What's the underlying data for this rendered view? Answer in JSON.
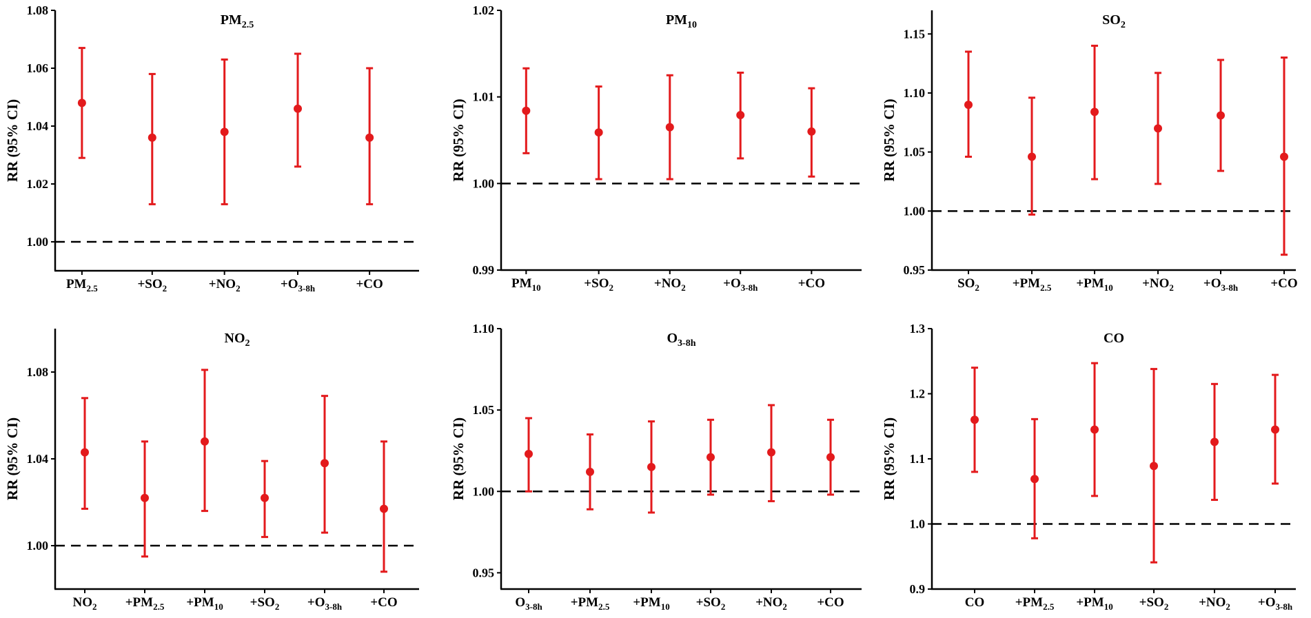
{
  "figure": {
    "color_point": "#e31a1c",
    "color_axis": "#000000",
    "color_reference": "#000000"
  },
  "chart_data": [
    {
      "type": "errorbar",
      "title": {
        "base": "PM",
        "sub": "2.5"
      },
      "ylabel": "RR (95% CI)",
      "ylim": [
        0.99,
        1.08
      ],
      "yticks": [
        "1.00",
        "1.02",
        "1.04",
        "1.06",
        "1.08"
      ],
      "reference": 1.0,
      "categories": [
        {
          "base": "PM",
          "sub": "2.5"
        },
        {
          "base": "+SO",
          "sub": "2"
        },
        {
          "base": "+NO",
          "sub": "2"
        },
        {
          "base": "+O",
          "sub": "3-8h"
        },
        {
          "base": "+CO",
          "sub": ""
        }
      ],
      "estimates": [
        1.048,
        1.036,
        1.038,
        1.046,
        1.036
      ],
      "lower": [
        1.029,
        1.013,
        1.013,
        1.026,
        1.013
      ],
      "upper": [
        1.067,
        1.058,
        1.063,
        1.065,
        1.06
      ]
    },
    {
      "type": "errorbar",
      "title": {
        "base": "PM",
        "sub": "10"
      },
      "ylabel": "RR (95% CI)",
      "ylim": [
        0.99,
        1.02
      ],
      "yticks": [
        "0.99",
        "1.00",
        "1.01",
        "1.02"
      ],
      "reference": 1.0,
      "categories": [
        {
          "base": "PM",
          "sub": "10"
        },
        {
          "base": "+SO",
          "sub": "2"
        },
        {
          "base": "+NO",
          "sub": "2"
        },
        {
          "base": "+O",
          "sub": "3-8h"
        },
        {
          "base": "+CO",
          "sub": ""
        }
      ],
      "estimates": [
        1.0084,
        1.0059,
        1.0065,
        1.0079,
        1.006
      ],
      "lower": [
        1.0035,
        1.0005,
        1.0005,
        1.0029,
        1.0008
      ],
      "upper": [
        1.0133,
        1.0112,
        1.0125,
        1.0128,
        1.011
      ]
    },
    {
      "type": "errorbar",
      "title": {
        "base": "SO",
        "sub": "2"
      },
      "ylabel": "RR (95% CI)",
      "ylim": [
        0.95,
        1.17
      ],
      "yticks": [
        "0.95",
        "1.00",
        "1.05",
        "1.10",
        "1.15"
      ],
      "reference": 1.0,
      "categories": [
        {
          "base": "SO",
          "sub": "2"
        },
        {
          "base": "+PM",
          "sub": "2.5"
        },
        {
          "base": "+PM",
          "sub": "10"
        },
        {
          "base": "+NO",
          "sub": "2"
        },
        {
          "base": "+O",
          "sub": "3-8h"
        },
        {
          "base": "+CO",
          "sub": ""
        }
      ],
      "estimates": [
        1.09,
        1.046,
        1.084,
        1.07,
        1.081,
        1.046
      ],
      "lower": [
        1.046,
        0.997,
        1.027,
        1.023,
        1.034,
        0.963
      ],
      "upper": [
        1.135,
        1.096,
        1.14,
        1.117,
        1.128,
        1.13
      ]
    },
    {
      "type": "errorbar",
      "title": {
        "base": "NO",
        "sub": "2"
      },
      "ylabel": "RR (95% CI)",
      "ylim": [
        0.98,
        1.1
      ],
      "yticks": [
        "1.00",
        "1.04",
        "1.08"
      ],
      "reference": 1.0,
      "categories": [
        {
          "base": "NO",
          "sub": "2"
        },
        {
          "base": "+PM",
          "sub": "2.5"
        },
        {
          "base": "+PM",
          "sub": "10"
        },
        {
          "base": "+SO",
          "sub": "2"
        },
        {
          "base": "+O",
          "sub": "3-8h"
        },
        {
          "base": "+CO",
          "sub": ""
        }
      ],
      "estimates": [
        1.043,
        1.022,
        1.048,
        1.022,
        1.038,
        1.017
      ],
      "lower": [
        1.017,
        0.995,
        1.016,
        1.004,
        1.006,
        0.988
      ],
      "upper": [
        1.068,
        1.048,
        1.081,
        1.039,
        1.069,
        1.048
      ]
    },
    {
      "type": "errorbar",
      "title": {
        "base": "O",
        "sub": "3-8h"
      },
      "ylabel": "RR (95% CI)",
      "ylim": [
        0.94,
        1.1
      ],
      "yticks": [
        "0.95",
        "1.00",
        "1.05",
        "1.10"
      ],
      "reference": 1.0,
      "categories": [
        {
          "base": "O",
          "sub": "3-8h"
        },
        {
          "base": "+PM",
          "sub": "2.5"
        },
        {
          "base": "+PM",
          "sub": "10"
        },
        {
          "base": "+SO",
          "sub": "2"
        },
        {
          "base": "+NO",
          "sub": "2"
        },
        {
          "base": "+CO",
          "sub": ""
        }
      ],
      "estimates": [
        1.023,
        1.012,
        1.015,
        1.021,
        1.024,
        1.021
      ],
      "lower": [
        1.0,
        0.989,
        0.987,
        0.998,
        0.994,
        0.998
      ],
      "upper": [
        1.045,
        1.035,
        1.043,
        1.044,
        1.053,
        1.044
      ]
    },
    {
      "type": "errorbar",
      "title": {
        "base": "CO",
        "sub": ""
      },
      "ylabel": "RR (95% CI)",
      "ylim": [
        0.9,
        1.3
      ],
      "yticks": [
        "0.9",
        "1.0",
        "1.1",
        "1.2",
        "1.3"
      ],
      "reference": 1.0,
      "categories": [
        {
          "base": "CO",
          "sub": ""
        },
        {
          "base": "+PM",
          "sub": "2.5"
        },
        {
          "base": "+PM",
          "sub": "10"
        },
        {
          "base": "+SO",
          "sub": "2"
        },
        {
          "base": "+NO",
          "sub": "2"
        },
        {
          "base": "+O",
          "sub": "3-8h"
        }
      ],
      "estimates": [
        1.16,
        1.069,
        1.145,
        1.089,
        1.126,
        1.145
      ],
      "lower": [
        1.08,
        0.978,
        1.043,
        0.941,
        1.037,
        1.062
      ],
      "upper": [
        1.24,
        1.161,
        1.247,
        1.238,
        1.215,
        1.229
      ]
    }
  ]
}
